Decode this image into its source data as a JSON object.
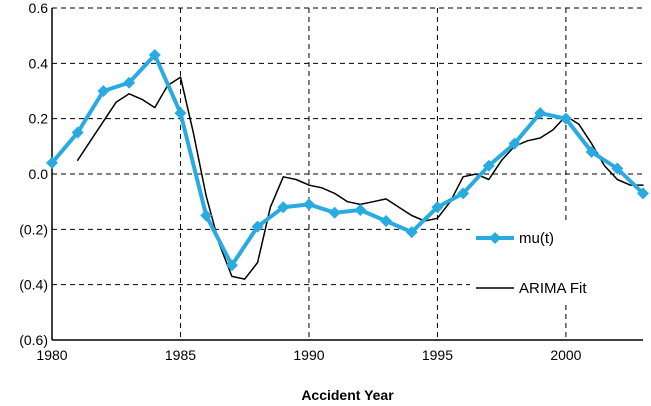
{
  "chart_data": {
    "type": "line",
    "title": "",
    "xlabel": "Accident Year",
    "ylabel": "",
    "xlim": [
      1980,
      2003
    ],
    "ylim": [
      -0.6,
      0.6
    ],
    "grid": true,
    "legend_position": "right",
    "x_ticks": [
      1980,
      1985,
      1990,
      1995,
      2000
    ],
    "y_ticks": [
      0.6,
      0.4,
      0.2,
      0.0,
      -0.2,
      -0.4,
      -0.6
    ],
    "y_tick_labels": [
      "0.6",
      "0.4",
      "0.2",
      "0.0",
      "(0.2)",
      "(0.4)",
      "(0.6)"
    ],
    "series": [
      {
        "name": "mu(t)",
        "color": "#29abe2",
        "marker": "diamond",
        "x": [
          1980,
          1981,
          1982,
          1983,
          1984,
          1985,
          1986,
          1987,
          1988,
          1989,
          1990,
          1991,
          1992,
          1993,
          1994,
          1995,
          1996,
          1997,
          1998,
          1999,
          2000,
          2001,
          2002,
          2003
        ],
        "y": [
          0.04,
          0.15,
          0.3,
          0.33,
          0.43,
          0.22,
          -0.15,
          -0.33,
          -0.19,
          -0.12,
          -0.11,
          -0.14,
          -0.13,
          -0.17,
          -0.21,
          -0.12,
          -0.07,
          0.03,
          0.11,
          0.22,
          0.2,
          0.08,
          0.02,
          -0.07
        ]
      },
      {
        "name": "ARIMA Fit",
        "color": "#000000",
        "marker": "none",
        "x": [
          1981,
          1981.5,
          1982,
          1982.5,
          1983,
          1983.5,
          1984,
          1984.5,
          1985,
          1985.5,
          1986,
          1986.5,
          1987,
          1987.5,
          1988,
          1988.5,
          1989,
          1989.5,
          1990,
          1990.5,
          1991,
          1991.5,
          1992,
          1992.5,
          1993,
          1993.5,
          1994,
          1994.5,
          1995,
          1995.5,
          1996,
          1996.5,
          1997,
          1997.5,
          1998,
          1998.5,
          1999,
          1999.5,
          2000,
          2000.5,
          2001,
          2001.5,
          2002,
          2002.5,
          2003
        ],
        "y": [
          0.05,
          0.12,
          0.19,
          0.26,
          0.29,
          0.27,
          0.24,
          0.32,
          0.35,
          0.15,
          -0.08,
          -0.25,
          -0.37,
          -0.38,
          -0.32,
          -0.12,
          -0.01,
          -0.02,
          -0.04,
          -0.05,
          -0.07,
          -0.1,
          -0.11,
          -0.1,
          -0.09,
          -0.12,
          -0.15,
          -0.17,
          -0.16,
          -0.1,
          -0.01,
          0.0,
          -0.02,
          0.05,
          0.1,
          0.12,
          0.13,
          0.16,
          0.21,
          0.18,
          0.11,
          0.03,
          -0.02,
          -0.04,
          -0.04
        ]
      }
    ]
  }
}
